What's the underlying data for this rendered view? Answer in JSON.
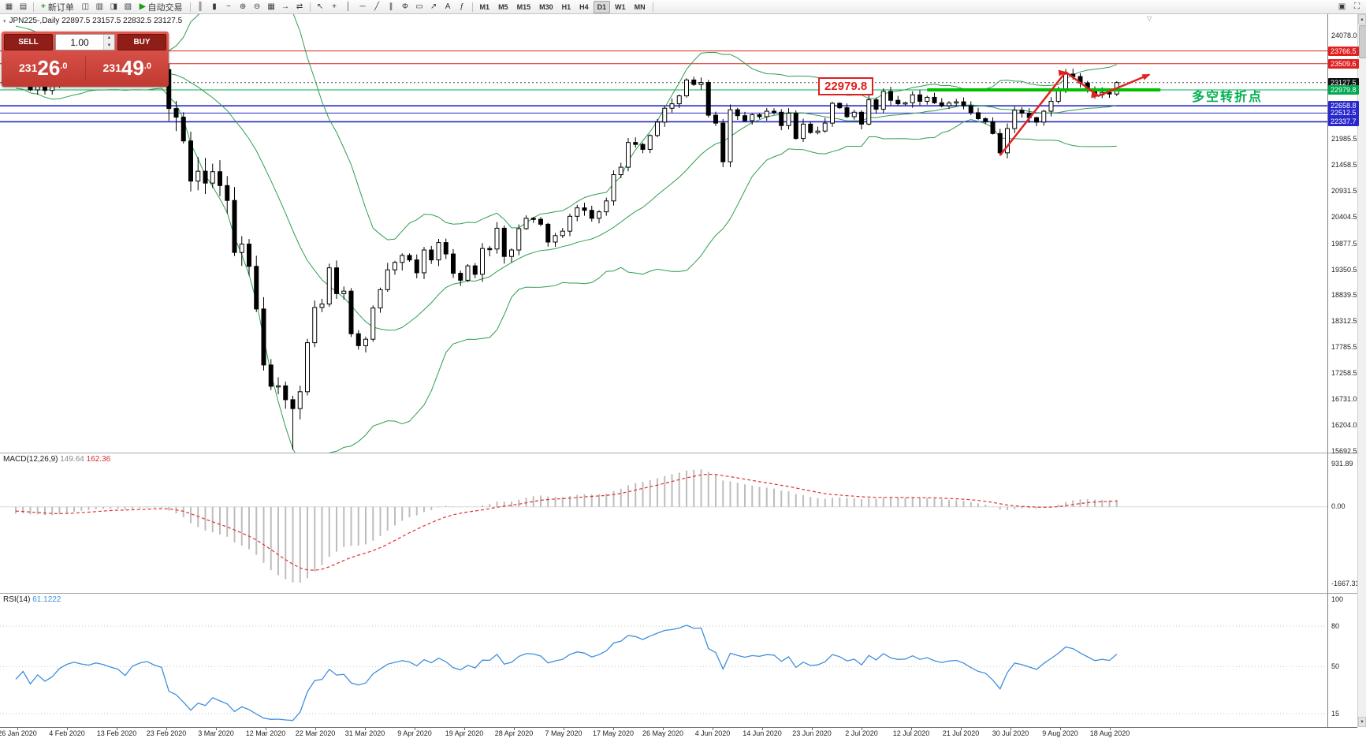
{
  "toolbar": {
    "left_icons": [
      {
        "name": "new-chart-icon",
        "glyph": "▦"
      },
      {
        "name": "chart-profiles-icon",
        "glyph": "▤"
      }
    ],
    "new_order": {
      "label": "新订单",
      "icon": "+"
    },
    "mid_icons": [
      {
        "name": "market-watch-icon",
        "glyph": "◫"
      },
      {
        "name": "data-window-icon",
        "glyph": "▥"
      },
      {
        "name": "navigator-icon",
        "glyph": "◨"
      },
      {
        "name": "terminal-icon",
        "glyph": "▧"
      }
    ],
    "autotrade": {
      "label": "自动交易",
      "icon": "▶"
    },
    "chart_icons": [
      {
        "name": "bar-chart-icon",
        "glyph": "║"
      },
      {
        "name": "candlestick-chart-icon",
        "glyph": "▮"
      },
      {
        "name": "line-chart-icon",
        "glyph": "~"
      },
      {
        "name": "zoom-in-icon",
        "glyph": "⊕"
      },
      {
        "name": "zoom-out-icon",
        "glyph": "⊖"
      },
      {
        "name": "tile-windows-icon",
        "glyph": "▦"
      },
      {
        "name": "auto-scroll-icon",
        "glyph": "→"
      },
      {
        "name": "chart-shift-icon",
        "glyph": "⇄"
      }
    ],
    "tool_icons": [
      {
        "name": "cursor-icon",
        "glyph": "↖"
      },
      {
        "name": "crosshair-icon",
        "glyph": "+"
      },
      {
        "name": "vertical-line-icon",
        "glyph": "│"
      },
      {
        "name": "horizontal-line-icon",
        "glyph": "─"
      },
      {
        "name": "trendline-icon",
        "glyph": "╱"
      },
      {
        "name": "channel-icon",
        "glyph": "∥"
      },
      {
        "name": "fibonacci-icon",
        "glyph": "Φ"
      },
      {
        "name": "shapes-icon",
        "glyph": "▭"
      },
      {
        "name": "arrow-tool-icon",
        "glyph": "↗"
      },
      {
        "name": "text-tool-icon",
        "glyph": "A"
      },
      {
        "name": "indicators-icon",
        "glyph": "ƒ"
      }
    ],
    "timeframes": [
      "M1",
      "M5",
      "M15",
      "M30",
      "H1",
      "H4",
      "D1",
      "W1",
      "MN"
    ],
    "active_timeframe": "D1",
    "right_icons": [
      {
        "name": "window-arrange-icon",
        "glyph": "▣"
      },
      {
        "name": "fullscreen-icon",
        "glyph": "⛶"
      }
    ]
  },
  "chart_header": {
    "text": "JPN225-,Daily 22897.5 23157.5 22832.5 23127.5"
  },
  "trade_panel": {
    "sell_label": "SELL",
    "buy_label": "BUY",
    "volume": "1.00",
    "spin_up": "▲",
    "spin_down": "▼",
    "sell_price": {
      "prefix": "231",
      "big": "26",
      "suffix": ".0"
    },
    "buy_price": {
      "prefix": "231",
      "big": "49",
      "suffix": ".0"
    }
  },
  "annotations": {
    "price_callout": "22979.8",
    "cn_note": "多空转折点",
    "shift_marker": "▽"
  },
  "scrollbar": {
    "up": "▲",
    "down": "▼"
  },
  "chart_data": {
    "type": "candlestick",
    "symbol": "JPN225",
    "timeframe": "Daily",
    "price_axis": {
      "min": 15692.5,
      "max": 24078.0,
      "ticks": [
        "24078.0",
        "21985.5",
        "21458.5",
        "20931.5",
        "20404.5",
        "19877.5",
        "19350.5",
        "18839.5",
        "18312.5",
        "17785.5",
        "17258.5",
        "16731.0",
        "16204.0",
        "15692.5"
      ],
      "special": [
        {
          "text": "23766.5",
          "bg": "#e02020"
        },
        {
          "text": "23509.6",
          "bg": "#e02020"
        },
        {
          "text": "23127.5",
          "bg": "#111111"
        },
        {
          "text": "22979.8",
          "bg": "#00a84f"
        },
        {
          "text": "22658.8",
          "bg": "#2828cc"
        },
        {
          "text": "22512.5",
          "bg": "#2828cc"
        },
        {
          "text": "22337.7",
          "bg": "#2828cc"
        }
      ]
    },
    "x_axis": {
      "labels": [
        "26 Jan 2020",
        "4 Feb 2020",
        "13 Feb 2020",
        "23 Feb 2020",
        "3 Mar 2020",
        "12 Mar 2020",
        "22 Mar 2020",
        "31 Mar 2020",
        "9 Apr 2020",
        "19 Apr 2020",
        "28 Apr 2020",
        "7 May 2020",
        "17 May 2020",
        "26 May 2020",
        "4 Jun 2020",
        "14 Jun 2020",
        "23 Jun 2020",
        "2 Jul 2020",
        "12 Jul 2020",
        "21 Jul 2020",
        "30 Jul 2020",
        "9 Aug 2020",
        "18 Aug 2020"
      ]
    },
    "first_open": 23150,
    "pre_closes": [
      23650,
      23740,
      23820,
      23850,
      23900,
      24060,
      23850,
      23950,
      24080,
      24040,
      23870,
      23800,
      23920,
      24000,
      23940,
      23830,
      23870,
      23660,
      23520,
      23280,
      23300,
      23350,
      23220,
      23480,
      23350,
      23150
    ],
    "closes": [
      23210,
      23380,
      22980,
      23200,
      22970,
      23085,
      23320,
      23450,
      23520,
      23470,
      23440,
      23500,
      23460,
      23400,
      23350,
      23190,
      23400,
      23480,
      23520,
      23440,
      23390,
      22605,
      22430,
      21950,
      21140,
      21340,
      21100,
      21330,
      21050,
      20750,
      19700,
      19870,
      19420,
      18560,
      17430,
      17000,
      17010,
      16730,
      16550,
      16890,
      17880,
      18590,
      18660,
      19390,
      18870,
      18920,
      18060,
      17820,
      17950,
      18580,
      18950,
      19350,
      19500,
      19640,
      19550,
      19290,
      19750,
      19550,
      19900,
      19670,
      19280,
      19140,
      19430,
      19260,
      19780,
      19770,
      20190,
      19620,
      19750,
      20180,
      20390,
      20370,
      20270,
      19910,
      20040,
      20130,
      20430,
      20600,
      20550,
      20390,
      20520,
      20740,
      21270,
      21420,
      21920,
      21880,
      21780,
      22060,
      22330,
      22610,
      22700,
      22860,
      23180,
      23090,
      23130,
      22470,
      22310,
      21530,
      22580,
      22460,
      22360,
      22480,
      22440,
      22550,
      22530,
      22260,
      22510,
      22000,
      22290,
      22120,
      22150,
      22310,
      22710,
      22620,
      22440,
      22530,
      22290,
      22780,
      22590,
      22950,
      22770,
      22700,
      22720,
      22880,
      22750,
      22830,
      22720,
      22660,
      22715,
      22740,
      22660,
      22520,
      22400,
      22340,
      22100,
      21710,
      22200,
      22570,
      22510,
      22420,
      22330,
      22550,
      22750,
      22980,
      23300,
      23250,
      23120,
      23000,
      22880,
      22930,
      22897.5,
      23127.5
    ],
    "low_overrides": {
      "38": 15720
    },
    "hlines": [
      {
        "price": 23766.5,
        "color": "#e02020",
        "w": 1
      },
      {
        "price": 23509.6,
        "color": "#e02020",
        "w": 1
      },
      {
        "price": 22979.8,
        "color": "#00b050",
        "w": 1
      },
      {
        "price": 22658.8,
        "color": "#2828cc",
        "w": 1.6
      },
      {
        "price": 22512.5,
        "color": "#2828cc",
        "w": 1
      },
      {
        "price": 22337.7,
        "color": "#2828cc",
        "w": 1.6
      }
    ],
    "last_price_line": 23127.5,
    "support_segment": {
      "price": 22979.8,
      "from_bar": 125,
      "to_bar": 157,
      "color": "#00c000",
      "w": 4
    },
    "trend_arrow": {
      "color": "#e02020",
      "points_bar_price": [
        [
          135,
          21660
        ],
        [
          144,
          23340
        ],
        [
          148.5,
          22860
        ],
        [
          155.5,
          23290
        ]
      ]
    },
    "bollinger": {
      "period": 20,
      "deviation": 2,
      "color": "#2e9e4e"
    },
    "colors": {
      "up": "#ffffff",
      "down": "#000000",
      "outline": "#000000"
    },
    "indicators": {
      "macd": {
        "label": "MACD(12,26,9)",
        "main": "149.64",
        "signal": "162.36",
        "axis": [
          "931.89",
          "0.00",
          "-1667.31"
        ],
        "range": [
          -1790,
          1000
        ],
        "bar_color": "#bdbdbd",
        "signal_color": "#e03030"
      },
      "rsi": {
        "label": "RSI(14)",
        "value": "61.1222",
        "axis": [
          "100",
          "80",
          "50",
          "15"
        ],
        "levels": [
          80,
          50,
          15
        ],
        "range": [
          0,
          100
        ],
        "color": "#3f8fde"
      }
    }
  }
}
